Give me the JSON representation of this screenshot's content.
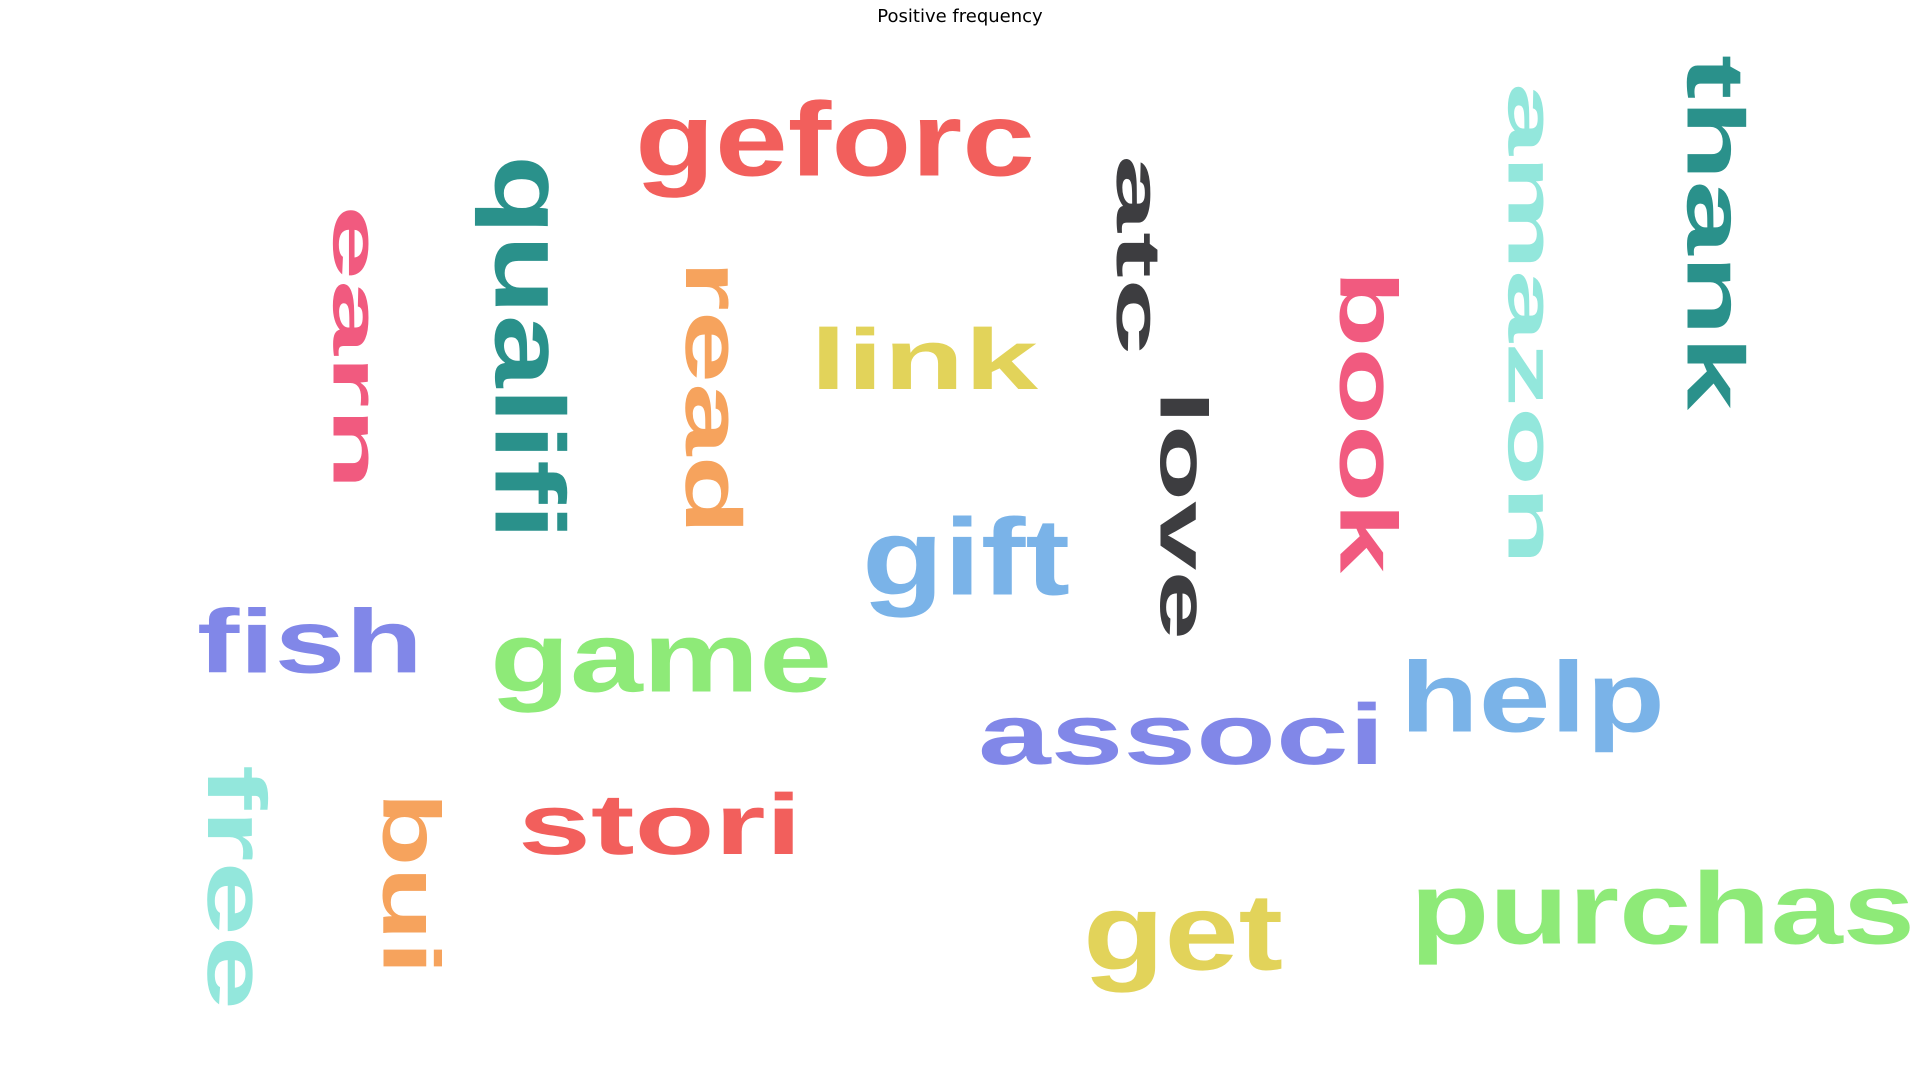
{
  "chart_data": {
    "type": "word_cloud",
    "title": "Positive frequency",
    "words": [
      {
        "text": "geforc",
        "color": "#f25f5c",
        "orientation": "horizontal"
      },
      {
        "text": "qualifi",
        "color": "#2a918b",
        "orientation": "vertical"
      },
      {
        "text": "earn",
        "color": "#f15a7f",
        "orientation": "vertical"
      },
      {
        "text": "read",
        "color": "#f6a35d",
        "orientation": "vertical"
      },
      {
        "text": "link",
        "color": "#e2d35a",
        "orientation": "horizontal"
      },
      {
        "text": "atc",
        "color": "#3d3d40",
        "orientation": "vertical"
      },
      {
        "text": "love",
        "color": "#3d3d40",
        "orientation": "vertical"
      },
      {
        "text": "book",
        "color": "#f15a7f",
        "orientation": "vertical"
      },
      {
        "text": "amazon",
        "color": "#93e7dc",
        "orientation": "vertical"
      },
      {
        "text": "thank",
        "color": "#2a918b",
        "orientation": "vertical"
      },
      {
        "text": "gift",
        "color": "#7ab3e8",
        "orientation": "horizontal"
      },
      {
        "text": "fish",
        "color": "#8187e8",
        "orientation": "horizontal"
      },
      {
        "text": "game",
        "color": "#8eea78",
        "orientation": "horizontal"
      },
      {
        "text": "help",
        "color": "#7ab3e8",
        "orientation": "horizontal"
      },
      {
        "text": "associ",
        "color": "#8187e8",
        "orientation": "horizontal"
      },
      {
        "text": "free",
        "color": "#93e7dc",
        "orientation": "vertical"
      },
      {
        "text": "bui",
        "color": "#f6a35d",
        "orientation": "vertical"
      },
      {
        "text": "stori",
        "color": "#f25f5c",
        "orientation": "horizontal"
      },
      {
        "text": "get",
        "color": "#e2d35a",
        "orientation": "horizontal"
      },
      {
        "text": "purchas",
        "color": "#8eea78",
        "orientation": "horizontal"
      }
    ]
  }
}
